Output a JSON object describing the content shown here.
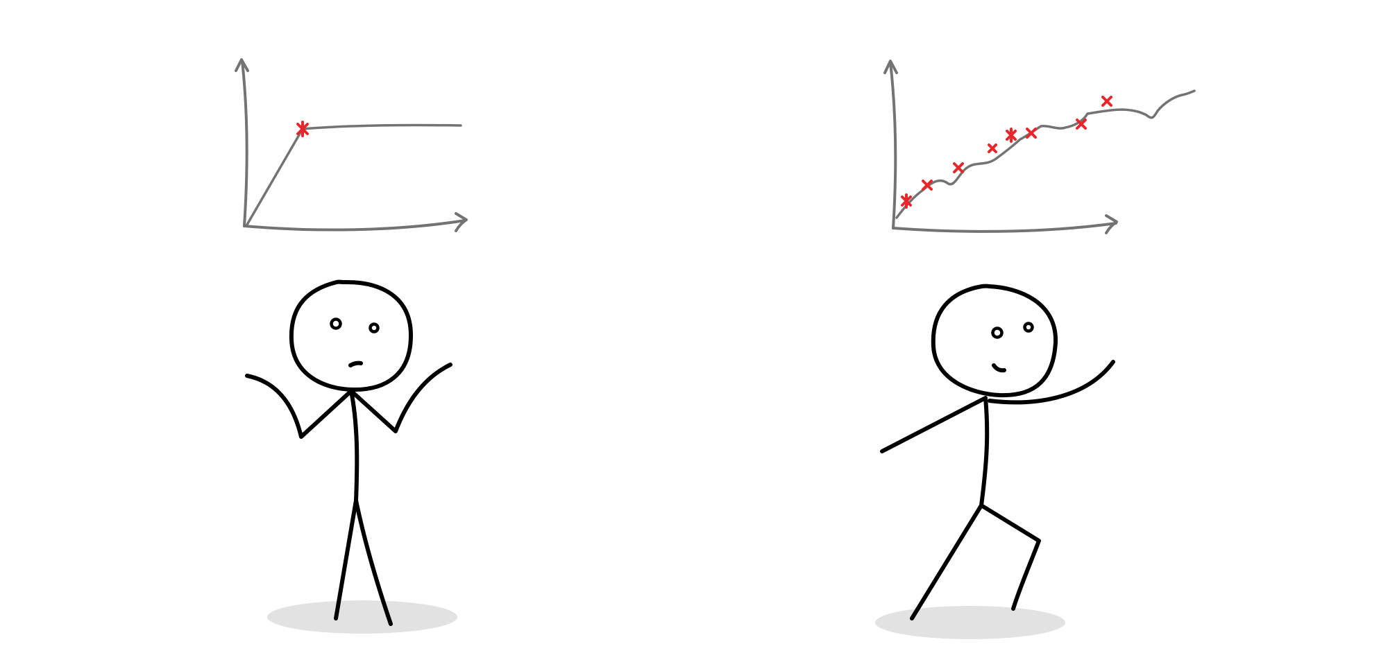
{
  "colors": {
    "ink": "#000000",
    "axis": "#737373",
    "marker": "#e8262b",
    "shadow": "#e2e2e2",
    "background": "#ffffff"
  },
  "panels": [
    {
      "id": "left",
      "graph": {
        "kind": "single-step-curve",
        "marker_count": 1
      },
      "figure": {
        "pose": "shrugging",
        "expression": "puzzled"
      }
    },
    {
      "id": "right",
      "graph": {
        "kind": "rising-curve",
        "marker_count": 8
      },
      "figure": {
        "pose": "walking",
        "expression": "content"
      }
    }
  ]
}
